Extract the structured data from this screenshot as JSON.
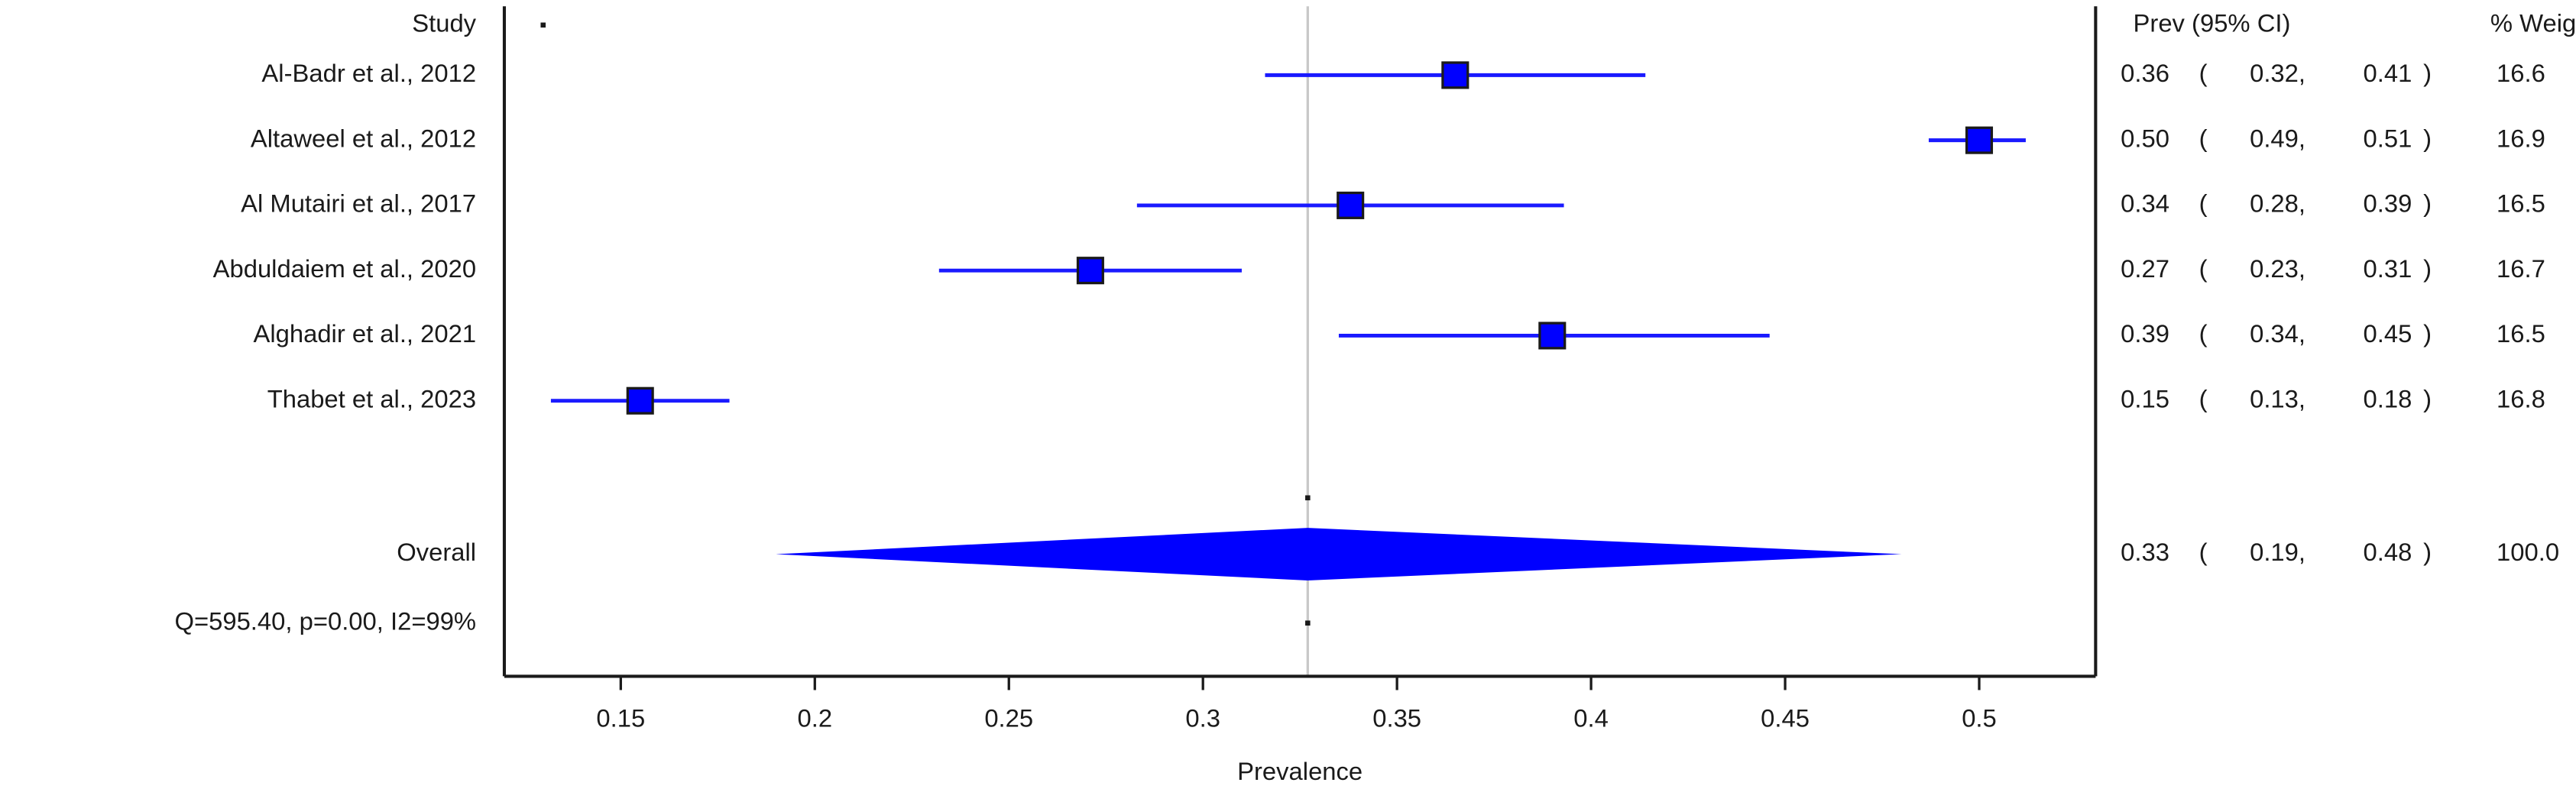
{
  "chart_data": {
    "type": "forest",
    "columns": {
      "study": "Study",
      "estimate": "Prev (95% CI)",
      "weight": "% Weight"
    },
    "studies": [
      {
        "name": "Al-Badr et al., 2012",
        "est": 0.365,
        "lo": 0.316,
        "hi": 0.414,
        "est_txt": "0.36",
        "lo_txt": "0.32",
        "hi_txt": "0.41",
        "weight": "16.6"
      },
      {
        "name": "Altaweel et al., 2012",
        "est": 0.5,
        "lo": 0.487,
        "hi": 0.512,
        "est_txt": "0.50",
        "lo_txt": "0.49",
        "hi_txt": "0.51",
        "weight": "16.9"
      },
      {
        "name": "Al Mutairi et al., 2017",
        "est": 0.338,
        "lo": 0.283,
        "hi": 0.393,
        "est_txt": "0.34",
        "lo_txt": "0.28",
        "hi_txt": "0.39",
        "weight": "16.5"
      },
      {
        "name": "Abduldaiem et al., 2020",
        "est": 0.271,
        "lo": 0.232,
        "hi": 0.31,
        "est_txt": "0.27",
        "lo_txt": "0.23",
        "hi_txt": "0.31",
        "weight": "16.7"
      },
      {
        "name": "Alghadir et al., 2021",
        "est": 0.39,
        "lo": 0.335,
        "hi": 0.446,
        "est_txt": "0.39",
        "lo_txt": "0.34",
        "hi_txt": "0.45",
        "weight": "16.5"
      },
      {
        "name": "Thabet et al., 2023",
        "est": 0.155,
        "lo": 0.132,
        "hi": 0.178,
        "est_txt": "0.15",
        "lo_txt": "0.13",
        "hi_txt": "0.18",
        "weight": "16.8"
      }
    ],
    "overall": {
      "name": "Overall",
      "est": 0.327,
      "lo": 0.19,
      "hi": 0.48,
      "est_txt": "0.33",
      "lo_txt": "0.19",
      "hi_txt": "0.48",
      "weight": "100.0"
    },
    "heterogeneity": "Q=595.40, p=0.00, I2=99%",
    "xlabel": "Prevalence",
    "xlim": [
      0.12,
      0.53
    ],
    "xticks": [
      0.15,
      0.2,
      0.25,
      0.3,
      0.35,
      0.4,
      0.45,
      0.5
    ],
    "xtick_labels": [
      "0.15",
      "0.2",
      "0.25",
      "0.3",
      "0.35",
      "0.4",
      "0.45",
      "0.5"
    ],
    "colors": {
      "marker": "#0000ff",
      "marker_edge": "#1a1a1a",
      "line": "#1a1aff",
      "axis": "#1a1a1a",
      "ref_line": "#c8c8c8"
    }
  }
}
